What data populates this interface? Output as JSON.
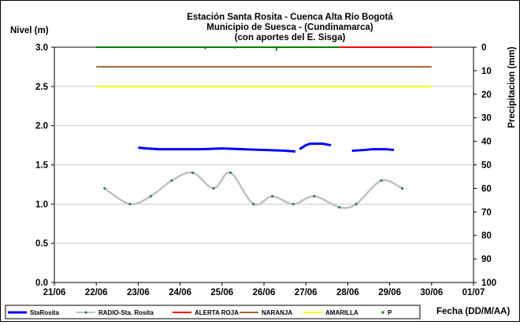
{
  "chart_data": {
    "type": "line",
    "title_lines": [
      "Estación Santa Rosita - Cuenca Alta Río Bogotá",
      "Municipio de Suesca - (Cundinamarca)",
      "(con aportes del  E. Sisga)"
    ],
    "ylabel": "Nivel (m)",
    "y2label": "Precipitacion (mm)",
    "xlabel": "Fecha (DD/M/AA)",
    "x_ticks": [
      "21/06",
      "22/06",
      "23/06",
      "24/06",
      "25/06",
      "26/06",
      "27/06",
      "28/06",
      "29/06",
      "30/06",
      "01/07"
    ],
    "ylim": [
      0,
      3.0
    ],
    "y_ticks": [
      "0.0",
      "0.5",
      "1.0",
      "1.5",
      "2.0",
      "2.5",
      "3.0"
    ],
    "y2lim": [
      100,
      0
    ],
    "y2_ticks": [
      "0",
      "10",
      "20",
      "30",
      "40",
      "50",
      "60",
      "70",
      "80",
      "90",
      "100"
    ],
    "grid": true,
    "legend_position": "bottom",
    "series": [
      {
        "name": "StaRosita",
        "color": "#0000FF",
        "style": "thick",
        "segments": [
          [
            [
              2.0,
              1.72
            ],
            [
              2.2,
              1.71
            ],
            [
              2.5,
              1.7
            ],
            [
              3.0,
              1.7
            ],
            [
              3.5,
              1.7
            ],
            [
              4.0,
              1.71
            ],
            [
              4.5,
              1.7
            ],
            [
              5.0,
              1.69
            ],
            [
              5.5,
              1.68
            ],
            [
              5.75,
              1.67
            ]
          ],
          [
            [
              5.85,
              1.7
            ],
            [
              6.0,
              1.75
            ],
            [
              6.1,
              1.77
            ],
            [
              6.4,
              1.77
            ],
            [
              6.6,
              1.75
            ]
          ],
          [
            [
              7.1,
              1.68
            ],
            [
              7.4,
              1.69
            ],
            [
              7.6,
              1.7
            ],
            [
              7.9,
              1.7
            ],
            [
              8.1,
              1.69
            ]
          ]
        ]
      },
      {
        "name": "RADIO-Sta. Rosita",
        "color": "#C0C0C0",
        "marker_color": "#2E7D6B",
        "style": "smooth",
        "points": [
          [
            1.2,
            1.2
          ],
          [
            1.8,
            1.0
          ],
          [
            2.3,
            1.1
          ],
          [
            2.8,
            1.3
          ],
          [
            3.3,
            1.4
          ],
          [
            3.8,
            1.2
          ],
          [
            4.2,
            1.4
          ],
          [
            4.75,
            1.0
          ],
          [
            5.2,
            1.1
          ],
          [
            5.7,
            1.0
          ],
          [
            6.2,
            1.1
          ],
          [
            6.8,
            0.96
          ],
          [
            7.2,
            1.0
          ],
          [
            7.8,
            1.3
          ],
          [
            8.3,
            1.2
          ]
        ]
      },
      {
        "name": "ALERTA ROJA",
        "color": "#FF0000",
        "segments": [
          [
            [
              6.8,
              3.0
            ],
            [
              9.0,
              3.0
            ]
          ]
        ]
      },
      {
        "name": "NARANJA",
        "color": "#996633",
        "segments": [
          [
            [
              1.0,
              2.75
            ],
            [
              9.0,
              2.75
            ]
          ]
        ]
      },
      {
        "name": "AMARILLA",
        "color": "#FFFF00",
        "segments": [
          [
            [
              1.0,
              2.5
            ],
            [
              9.0,
              2.5
            ]
          ]
        ]
      },
      {
        "name": "P",
        "color": "#008000",
        "axis": "right",
        "style": "bars",
        "line_x": [
          1.0,
          9.0
        ],
        "points": [
          [
            1.5,
            0.4
          ],
          [
            3.2,
            0.3
          ],
          [
            3.6,
            0.8
          ],
          [
            4.3,
            0.5
          ],
          [
            5.3,
            1.5
          ],
          [
            6.5,
            0.3
          ],
          [
            7.6,
            0.3
          ]
        ]
      }
    ]
  }
}
